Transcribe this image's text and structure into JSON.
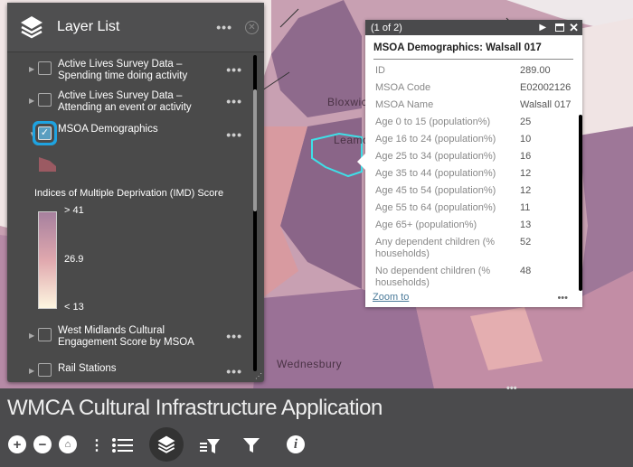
{
  "map": {
    "labels": [
      "Bloxwich",
      "Leamore",
      "Wednesbury"
    ]
  },
  "layer_list": {
    "title": "Layer List",
    "layers": [
      {
        "label": "Active Lives Survey Data – Spending time doing activity",
        "checked": false
      },
      {
        "label": "Active Lives Survey Data – Attending an event or activity",
        "checked": false
      },
      {
        "label": "MSOA Demographics",
        "checked": true
      },
      {
        "label": "West Midlands Cultural Engagement Score by MSOA",
        "checked": false
      },
      {
        "label": "Rail Stations",
        "checked": false
      }
    ],
    "legend": {
      "title": "Indices of Multiple Deprivation (IMD) Score",
      "max": "> 41",
      "mid": "26.9",
      "min": "< 13",
      "colors": [
        "#a6809e",
        "#e0a8ae",
        "#fdf6e0"
      ]
    },
    "more": "•••"
  },
  "popup": {
    "pager": "(1 of 2)",
    "title": "MSOA Demographics: Walsall 017",
    "fields": [
      {
        "k": "ID",
        "v": "289.00"
      },
      {
        "k": "MSOA Code",
        "v": "E02002126"
      },
      {
        "k": "MSOA Name",
        "v": "Walsall 017"
      },
      {
        "k": "Age 0 to 15 (population%)",
        "v": "25"
      },
      {
        "k": "Age 16 to 24 (population%)",
        "v": "10"
      },
      {
        "k": "Age 25 to 34 (population%)",
        "v": "16"
      },
      {
        "k": "Age 35 to 44 (population%)",
        "v": "12"
      },
      {
        "k": "Age 45 to 54 (population%)",
        "v": "12"
      },
      {
        "k": "Age 55 to 64 (population%)",
        "v": "11"
      },
      {
        "k": "Age 65+ (population%)",
        "v": "13"
      },
      {
        "k": "Any dependent children (% households)",
        "v": "52"
      },
      {
        "k": "No dependent children (% households)",
        "v": "48"
      }
    ],
    "zoom_to": "Zoom to",
    "more": "•••"
  },
  "app": {
    "title": "WMCA Cultural Infrastructure Application"
  },
  "accent": "#1fa3e0"
}
